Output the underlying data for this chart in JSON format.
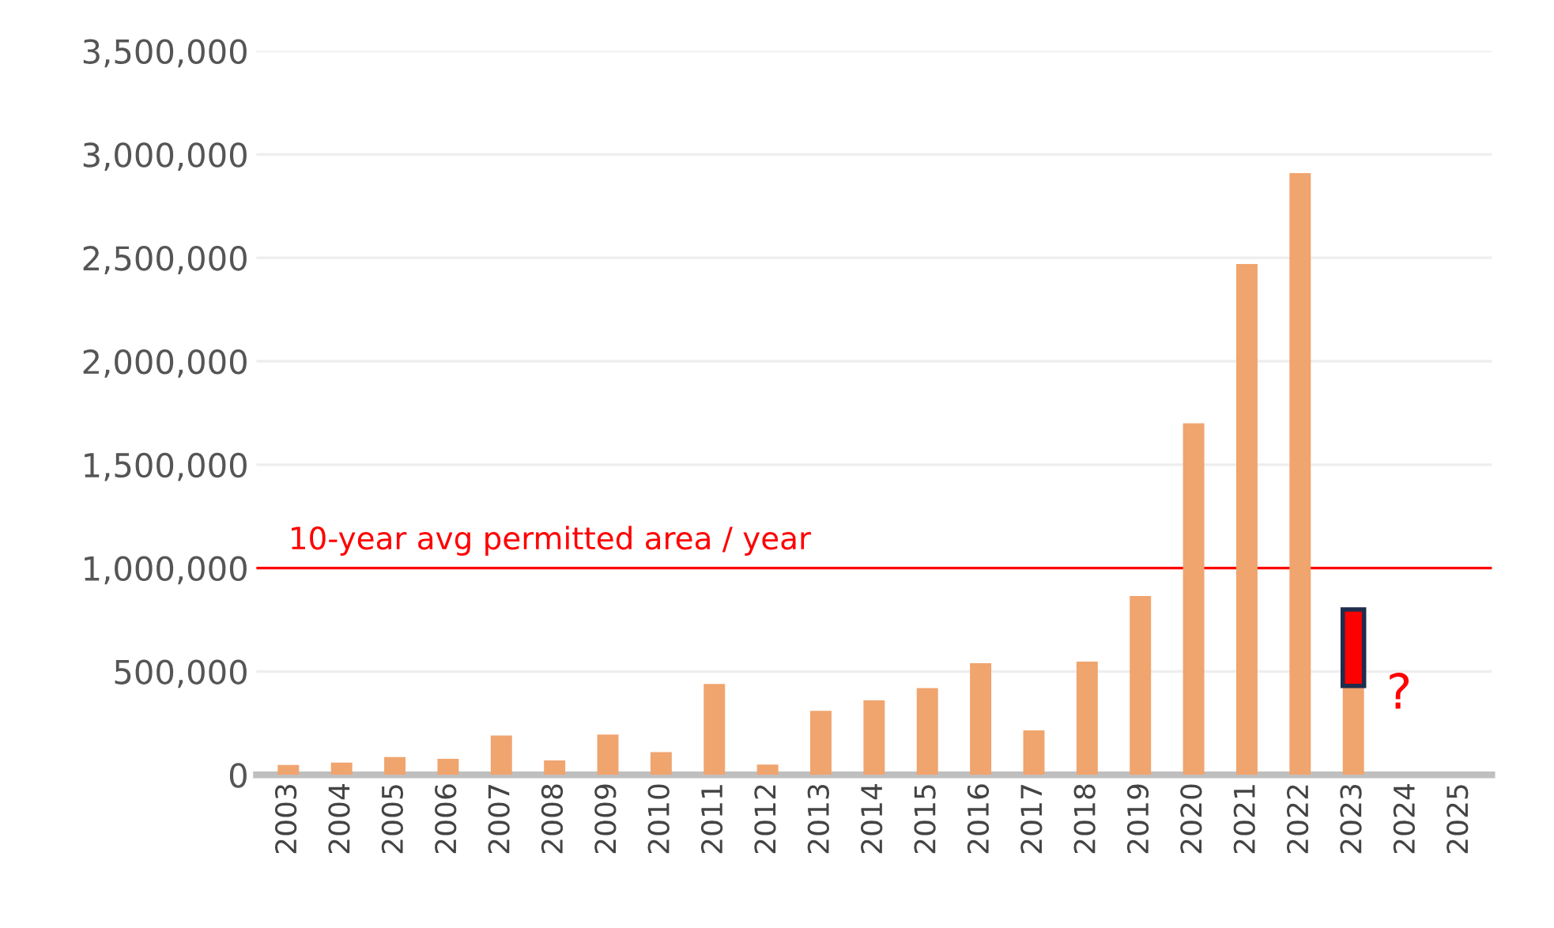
{
  "chart_data": {
    "type": "bar",
    "stacked": true,
    "categories": [
      "2003",
      "2004",
      "2005",
      "2006",
      "2007",
      "2008",
      "2009",
      "2010",
      "2011",
      "2012",
      "2013",
      "2014",
      "2015",
      "2016",
      "2017",
      "2018",
      "2019",
      "2020",
      "2021",
      "2022",
      "2023",
      "2024",
      "2025"
    ],
    "series": [
      {
        "color": "#f0a46e",
        "values": [
          48000,
          59000,
          86000,
          78000,
          190000,
          70000,
          195000,
          110000,
          440000,
          50000,
          310000,
          360000,
          420000,
          540000,
          215000,
          548000,
          865000,
          1700000,
          2470000,
          2910000,
          430000,
          null,
          null
        ]
      },
      {
        "color": "#ff0000",
        "values": [
          null,
          null,
          null,
          null,
          null,
          null,
          null,
          null,
          null,
          null,
          null,
          null,
          null,
          null,
          null,
          null,
          null,
          null,
          null,
          null,
          370000,
          null,
          null
        ]
      }
    ],
    "ylim": [
      0,
      3500000
    ],
    "yticks": [
      {
        "value": 0,
        "label": "0"
      },
      {
        "value": 500000,
        "label": "500,000"
      },
      {
        "value": 1000000,
        "label": "1,000,000"
      },
      {
        "value": 1500000,
        "label": "1,500,000"
      },
      {
        "value": 2000000,
        "label": "2,000,000"
      },
      {
        "value": 2500000,
        "label": "2,500,000"
      },
      {
        "value": 3000000,
        "label": "3,000,000"
      },
      {
        "value": 3500000,
        "label": "3,500,000"
      }
    ],
    "grid": "y",
    "ref_lines": [
      {
        "axis": "y",
        "value": 1000000,
        "label": "10-year avg permitted area / year",
        "color": "#ff0000"
      }
    ],
    "annotations": [
      "?"
    ]
  }
}
